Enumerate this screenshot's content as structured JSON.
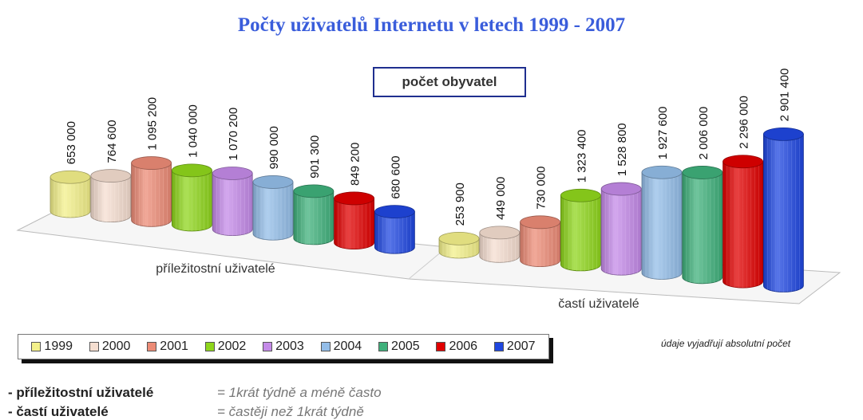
{
  "chart_data": {
    "type": "bar",
    "title": "Počty uživatelů Internetu v letech 1999 - 2007",
    "unit_label": "počet obyvatel",
    "categories": [
      "příležitostní uživatelé",
      "častí uživatelé"
    ],
    "series": [
      {
        "name": "1999",
        "color": "#f3f08a",
        "values": [
          653000,
          253900
        ],
        "labels": [
          "653 000",
          "253 900"
        ]
      },
      {
        "name": "2000",
        "color": "#f5ded0",
        "values": [
          764600,
          449000
        ],
        "labels": [
          "764 600",
          "449 000"
        ]
      },
      {
        "name": "2001",
        "color": "#ec8b76",
        "values": [
          1095200,
          730000
        ],
        "labels": [
          "1 095 200",
          "730 000"
        ]
      },
      {
        "name": "2002",
        "color": "#8fd61c",
        "values": [
          1040000,
          1323400
        ],
        "labels": [
          "1 040 000",
          "1 323 400"
        ]
      },
      {
        "name": "2003",
        "color": "#c48ae8",
        "values": [
          1070200,
          1528800
        ],
        "labels": [
          "1 070 200",
          "1 528 800"
        ]
      },
      {
        "name": "2004",
        "color": "#93bde8",
        "values": [
          990000,
          1927600
        ],
        "labels": [
          "990 000",
          "1 927 600"
        ]
      },
      {
        "name": "2005",
        "color": "#3fb07b",
        "values": [
          901300,
          2006000
        ],
        "labels": [
          "901 300",
          "2 006 000"
        ]
      },
      {
        "name": "2006",
        "color": "#e00000",
        "values": [
          849200,
          2296000
        ],
        "labels": [
          "849 200",
          "2 296 000"
        ]
      },
      {
        "name": "2007",
        "color": "#1f47e0",
        "values": [
          680600,
          2901400
        ],
        "labels": [
          "680 600",
          "2 901 400"
        ]
      }
    ],
    "legend_position": "bottom-left",
    "grid": false
  },
  "note": "údaje vyjadřují absolutní počet",
  "definitions": [
    {
      "term": "- příležitostní uživatelé",
      "desc": "= 1krát týdně a méně často"
    },
    {
      "term": "- častí uživatelé",
      "desc": "= častěji než 1krát týdně"
    }
  ]
}
